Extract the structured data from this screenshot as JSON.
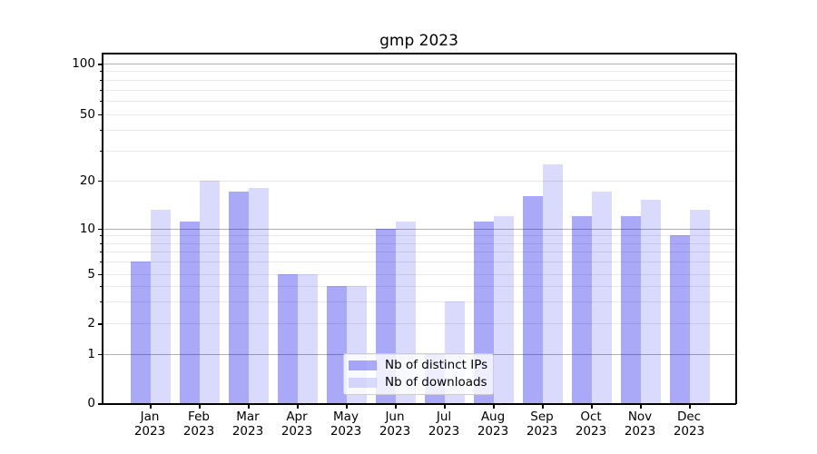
{
  "title": "gmp 2023",
  "chart_data": {
    "type": "bar",
    "title": "gmp 2023",
    "categories": [
      "Jan 2023",
      "Feb 2023",
      "Mar 2023",
      "Apr 2023",
      "May 2023",
      "Jun 2023",
      "Jul 2023",
      "Aug 2023",
      "Sep 2023",
      "Oct 2023",
      "Nov 2023",
      "Dec 2023"
    ],
    "category_line1": [
      "Jan",
      "Feb",
      "Mar",
      "Apr",
      "May",
      "Jun",
      "Jul",
      "Aug",
      "Sep",
      "Oct",
      "Nov",
      "Dec"
    ],
    "category_line2": "2023",
    "series": [
      {
        "name": "Nb of distinct IPs",
        "values": [
          6,
          11,
          17,
          5,
          4,
          10,
          1,
          11,
          16,
          12,
          12,
          9
        ]
      },
      {
        "name": "Nb of downloads",
        "values": [
          13,
          20,
          18,
          5,
          4,
          11,
          3,
          12,
          25,
          17,
          15,
          13
        ]
      }
    ],
    "yaxis": {
      "scale": "symlog",
      "tick_values": [
        0,
        1,
        2,
        5,
        10,
        20,
        50,
        100
      ],
      "tick_labels": [
        "0",
        "1",
        "2",
        "5",
        "10",
        "20",
        "50",
        "100"
      ],
      "major_grid_values": [
        1,
        10,
        100
      ],
      "minor_grid_values": [
        2,
        3,
        4,
        5,
        6,
        7,
        8,
        9,
        20,
        30,
        40,
        50,
        60,
        70,
        80,
        90
      ],
      "ylim": [
        0,
        115
      ]
    },
    "grid": "on",
    "legend_position": "lower center"
  },
  "colors": {
    "bar_distinct_ips": "rgba(10,10,235,0.35)",
    "bar_downloads": "rgba(10,10,235,0.15)",
    "grid_major": "#b0b0b0",
    "grid_minor": "#e8e8e8",
    "axis": "#000000",
    "background": "#ffffff"
  }
}
